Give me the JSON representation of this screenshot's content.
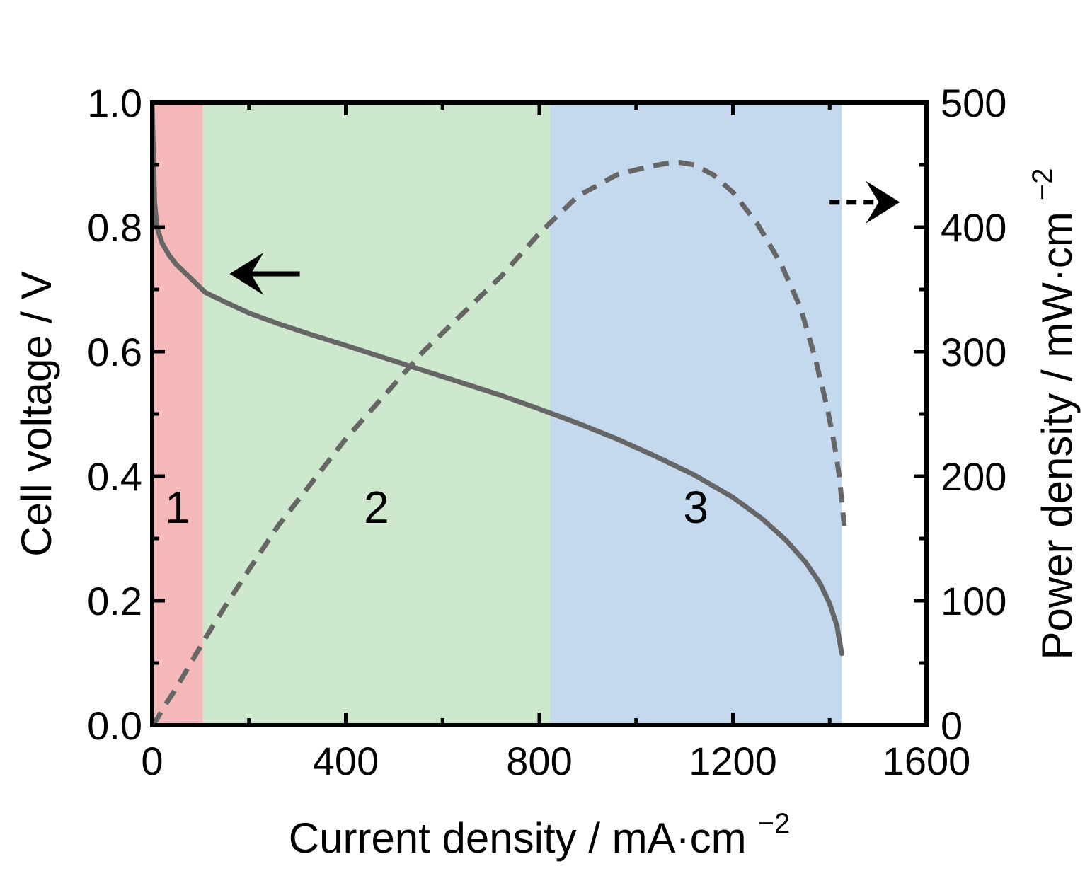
{
  "chart_data": {
    "type": "line",
    "xlabel": "Current density / mA·cm",
    "xlabel_sup": "−2",
    "ylabel_left": "Cell voltage / V",
    "ylabel_right": "Power density / mW·cm",
    "ylabel_right_sup": "−2",
    "xlim": [
      0,
      1600
    ],
    "ylim_left": [
      0,
      1.0
    ],
    "ylim_right": [
      0,
      500
    ],
    "x_ticks": [
      "0",
      "400",
      "800",
      "1200",
      "1600"
    ],
    "y_left_ticks": [
      "0.0",
      "0.2",
      "0.4",
      "0.6",
      "0.8",
      "1.0"
    ],
    "y_right_ticks": [
      "0",
      "100",
      "200",
      "300",
      "400",
      "500"
    ],
    "regions": [
      {
        "label": "1",
        "x_start": 0,
        "x_end": 105,
        "color": "#f4b8b8",
        "label_y": 0.35
      },
      {
        "label": "2",
        "x_start": 105,
        "x_end": 822,
        "color": "#cde8cd",
        "label_y": 0.35
      },
      {
        "label": "3",
        "x_start": 822,
        "x_end": 1425,
        "color": "#c4d9ee",
        "label_y": 0.35
      }
    ],
    "series": [
      {
        "axis": "left",
        "style": "solid",
        "color": "#666666",
        "x": [
          0,
          5,
          10,
          20,
          35,
          50,
          70,
          90,
          110,
          150,
          200,
          260,
          330,
          400,
          480,
          560,
          640,
          720,
          800,
          880,
          960,
          1040,
          1120,
          1200,
          1260,
          1310,
          1350,
          1380,
          1400,
          1415,
          1425
        ],
        "y": [
          1.0,
          0.84,
          0.8,
          0.775,
          0.755,
          0.74,
          0.725,
          0.71,
          0.695,
          0.68,
          0.662,
          0.645,
          0.627,
          0.61,
          0.59,
          0.57,
          0.55,
          0.53,
          0.508,
          0.485,
          0.46,
          0.432,
          0.402,
          0.366,
          0.332,
          0.297,
          0.262,
          0.228,
          0.195,
          0.16,
          0.115
        ]
      },
      {
        "axis": "right",
        "style": "dashed",
        "color": "#666666",
        "x": [
          0,
          10,
          25,
          50,
          80,
          110,
          150,
          200,
          260,
          330,
          400,
          480,
          560,
          640,
          720,
          800,
          880,
          960,
          1020,
          1060,
          1090,
          1120,
          1160,
          1200,
          1250,
          1300,
          1340,
          1370,
          1395,
          1410,
          1420,
          1430
        ],
        "y": [
          0,
          5,
          15,
          30,
          50,
          70,
          95,
          125,
          160,
          195,
          230,
          265,
          300,
          330,
          360,
          395,
          425,
          442,
          448,
          451,
          452,
          450,
          442,
          428,
          403,
          370,
          335,
          295,
          255,
          225,
          200,
          160
        ]
      }
    ],
    "annotations": [
      {
        "type": "arrow",
        "direction": "left",
        "style": "solid",
        "x_start": 305,
        "x_end": 160,
        "y": 0.725,
        "axis": "left"
      },
      {
        "type": "arrow",
        "direction": "right",
        "style": "dashed",
        "x_start": 1400,
        "x_end": 1545,
        "y": 420,
        "axis": "right"
      }
    ]
  }
}
